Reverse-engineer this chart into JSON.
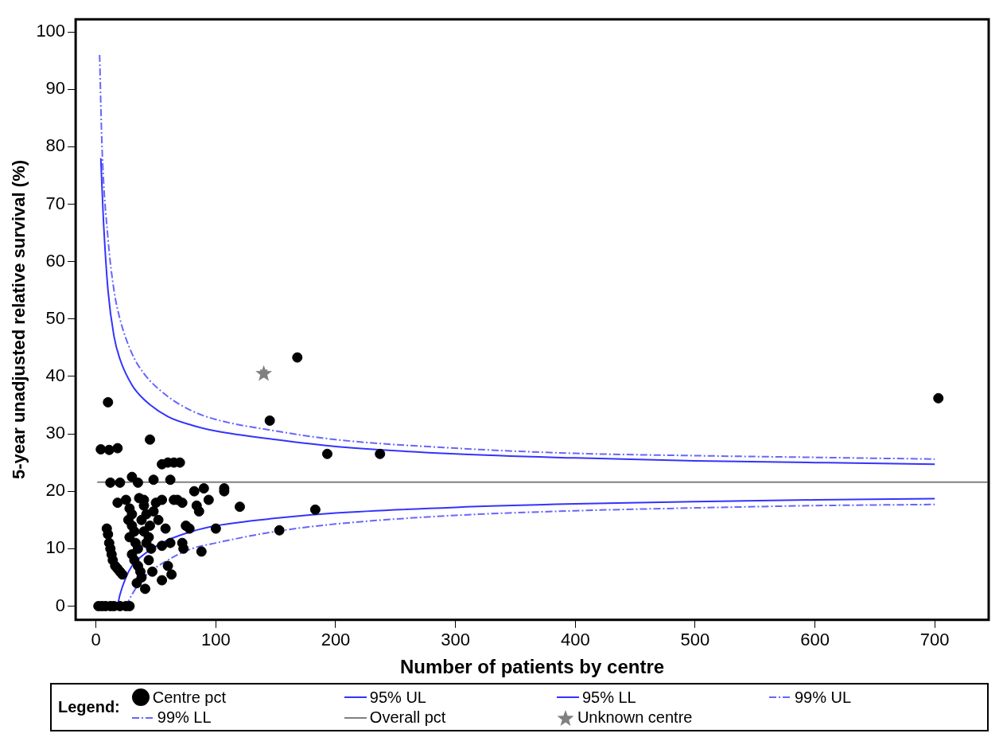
{
  "chart_data": {
    "type": "scatter",
    "xlabel": "Number of patients by centre",
    "ylabel": "5-year unadjusted relative survival (%)",
    "legend_title": "Legend:",
    "legend": "bottom",
    "grid": false,
    "xlim": [
      -17,
      745
    ],
    "ylim": [
      -2.4,
      102.2
    ],
    "xticks": [
      0,
      100,
      200,
      300,
      400,
      500,
      600,
      700
    ],
    "yticks": [
      0,
      10,
      20,
      30,
      40,
      50,
      60,
      70,
      80,
      90,
      100
    ],
    "series": [
      {
        "name": "Centre pct",
        "color": "#000000",
        "marker": "circle",
        "x": [
          2,
          5,
          8,
          12,
          15,
          20,
          25,
          28,
          9,
          10,
          11,
          12,
          13,
          14,
          16,
          18,
          20,
          22,
          25,
          28,
          30,
          27,
          30,
          32,
          28,
          33,
          35,
          30,
          32,
          35,
          37,
          38,
          34,
          40,
          42,
          38,
          45,
          40,
          44,
          42,
          46,
          40,
          36,
          50,
          48,
          44,
          47,
          41,
          55,
          60,
          63,
          52,
          58,
          55,
          62,
          68,
          72,
          75,
          78,
          72,
          73,
          88,
          82,
          90,
          94,
          86,
          84,
          100,
          107,
          107,
          120,
          62,
          48,
          30,
          18,
          12,
          20,
          65,
          55,
          35,
          10,
          4,
          11,
          18,
          45,
          60,
          65,
          70,
          55,
          145,
          168,
          193,
          237,
          183,
          153,
          703
        ],
        "values": [
          0,
          0,
          0,
          0,
          0,
          0,
          0,
          0,
          13.5,
          12.5,
          11,
          10,
          9,
          8,
          7,
          6.5,
          6,
          5.5,
          18.5,
          17,
          16,
          15,
          14,
          13,
          12,
          11,
          10,
          9,
          8,
          7,
          6,
          5,
          4,
          17.5,
          16,
          15,
          14,
          13,
          12,
          11,
          10,
          18.5,
          18.8,
          18,
          16.5,
          8,
          6,
          3,
          4.5,
          7,
          5.5,
          15,
          13.5,
          10.5,
          11,
          18.5,
          18,
          14,
          13.5,
          11,
          10,
          9.5,
          20,
          20.5,
          18.5,
          16.5,
          17.5,
          13.5,
          20.5,
          20,
          17.3,
          22,
          22,
          22.5,
          18,
          21.5,
          21.5,
          18.5,
          18.5,
          21.5,
          35.5,
          27.3,
          27.2,
          27.5,
          29,
          25,
          25,
          25,
          24.7,
          32.3,
          43.3,
          26.5,
          26.5,
          16.8,
          13.2,
          36.2
        ]
      },
      {
        "name": "95% UL",
        "type": "line",
        "color": "#3333ff",
        "line_style": "solid",
        "x": [
          4,
          6,
          10,
          15,
          20,
          30,
          40,
          60,
          80,
          100,
          150,
          200,
          300,
          400,
          500,
          600,
          700
        ],
        "values": [
          78,
          68,
          55,
          47,
          43,
          38.5,
          36,
          33,
          31.5,
          30.5,
          29,
          27.8,
          26.5,
          25.8,
          25.3,
          25,
          24.7
        ]
      },
      {
        "name": "95% LL",
        "type": "line",
        "color": "#3333ff",
        "line_style": "solid",
        "x": [
          18,
          20,
          25,
          30,
          40,
          60,
          80,
          100,
          150,
          200,
          300,
          400,
          500,
          600,
          700
        ],
        "values": [
          0,
          2,
          5,
          7,
          9,
          11.5,
          13,
          14,
          15.3,
          16.2,
          17.2,
          17.8,
          18.2,
          18.5,
          18.7
        ]
      },
      {
        "name": "99% UL",
        "type": "line",
        "color": "#6666ff",
        "line_style": "dashed",
        "x": [
          3,
          5,
          10,
          15,
          20,
          30,
          40,
          60,
          80,
          100,
          150,
          200,
          300,
          400,
          500,
          600,
          700
        ],
        "values": [
          96,
          80,
          64,
          55,
          50,
          44,
          40.5,
          36.5,
          34,
          32.5,
          30.5,
          29,
          27.5,
          26.6,
          26.2,
          25.9,
          25.6
        ]
      },
      {
        "name": "99% LL",
        "type": "line",
        "color": "#6666ff",
        "line_style": "dashed",
        "x": [
          25,
          30,
          40,
          60,
          80,
          100,
          150,
          200,
          300,
          400,
          500,
          600,
          700
        ],
        "values": [
          0,
          2,
          5,
          8,
          10,
          11,
          13,
          14.3,
          15.8,
          16.6,
          17.1,
          17.5,
          17.7
        ]
      },
      {
        "name": "Overall pct",
        "type": "line",
        "color": "#808080",
        "line_style": "solid",
        "x": [
          1,
          744
        ],
        "values": [
          21.6,
          21.6
        ]
      },
      {
        "name": "Unknown centre",
        "color": "#808080",
        "marker": "star",
        "x": [
          140
        ],
        "values": [
          40.6
        ]
      }
    ]
  }
}
